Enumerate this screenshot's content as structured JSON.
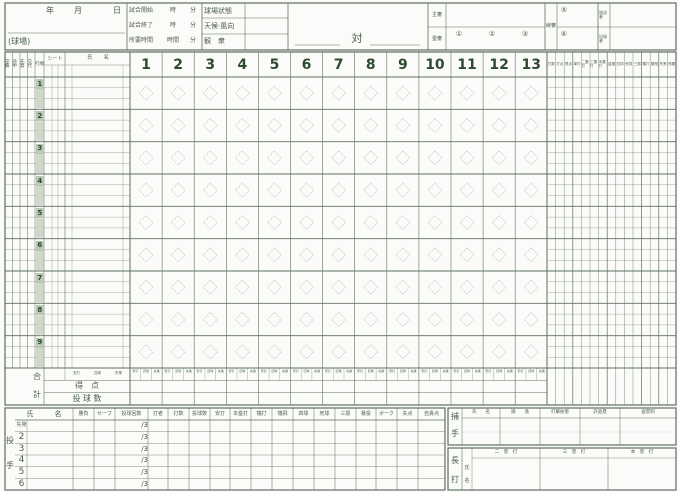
{
  "header": {
    "year": "年",
    "month": "月",
    "day": "日",
    "stadium": "(球場)",
    "start": "試合開始",
    "end": "試合終了",
    "duration": "所要時間",
    "hour": "時",
    "hours": "時間",
    "minute": "分",
    "field_condition": "球場状態",
    "weather_wind": "天候·風向",
    "attendance": "観　衆",
    "versus": "対",
    "plate_umpire": "主審",
    "base_umpire": "塁審",
    "base_umpire_marks": [
      "①",
      "②",
      "③"
    ],
    "line_umpire": "線審",
    "line_umpire_marks": [
      "⑤",
      "⑥"
    ],
    "announcer": "放送者",
    "scorer": "記録者"
  },
  "batting": {
    "left_headers": [
      "守備",
      "途中",
      "先発",
      "交代",
      "打順"
    ],
    "seat_label": "シート",
    "name_label": "氏　　名",
    "innings": [
      "1",
      "2",
      "3",
      "4",
      "5",
      "6",
      "7",
      "8",
      "9",
      "10",
      "11",
      "12",
      "13"
    ],
    "order_numbers": [
      "1",
      "2",
      "3",
      "4",
      "5",
      "6",
      "7",
      "8",
      "9"
    ],
    "stats_headers": [
      "打数",
      "打点",
      "得点",
      "単打",
      "二塁打",
      "三塁打",
      "本塁打",
      "盗塁",
      "四球",
      "死球",
      "三振",
      "犠打",
      "犠飛",
      "失策",
      "残塁"
    ]
  },
  "totals": {
    "label_top": "合",
    "label_bottom": "計",
    "sub_labels": [
      "安打",
      "四球",
      "失策"
    ],
    "runs": "得　点",
    "pitches": "投 球 数"
  },
  "pitchers": {
    "side_label": [
      "投",
      "手"
    ],
    "headers": [
      "氏　　　名",
      "勝負",
      "セーブ",
      "投球回数",
      "打者",
      "打数",
      "投球数",
      "安打",
      "本塁打",
      "犠打",
      "犠飛",
      "四球",
      "死球",
      "三振",
      "暴投",
      "ボーク",
      "失点",
      "自責点"
    ],
    "rows": [
      "先発",
      "2",
      "3",
      "4",
      "5",
      "6"
    ],
    "innings_suffix": "/3"
  },
  "catcher": {
    "side_label": [
      "捕",
      "手"
    ],
    "headers": [
      "氏　　名",
      "捕　　逸",
      "打撃妨害",
      "許盗塁",
      "盗塁刺"
    ]
  },
  "extra_base": {
    "side_label": [
      "長",
      "打"
    ],
    "name_label": [
      "氏",
      "名"
    ],
    "headers": [
      "二　塁　打",
      "三　塁　打",
      "本　塁　打"
    ]
  },
  "colors": {
    "line": "#5f6f5f",
    "text": "#4d5e4d",
    "accent": "#2f4a2f",
    "order_box": "#b9c7b4"
  }
}
